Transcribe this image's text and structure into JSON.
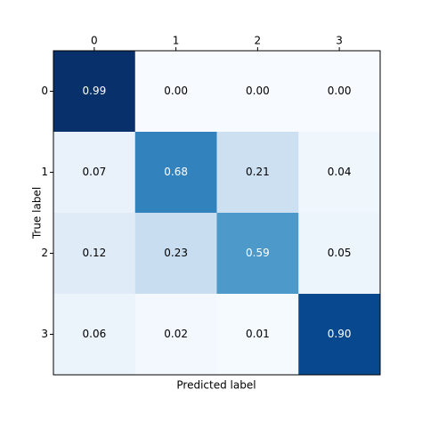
{
  "chart_data": {
    "type": "heatmap",
    "xlabel": "Predicted label",
    "ylabel": "True label",
    "x_categories": [
      "0",
      "1",
      "2",
      "3"
    ],
    "y_categories": [
      "0",
      "1",
      "2",
      "3"
    ],
    "values": [
      [
        0.99,
        0.0,
        0.0,
        0.0
      ],
      [
        0.07,
        0.68,
        0.21,
        0.04
      ],
      [
        0.12,
        0.23,
        0.59,
        0.05
      ],
      [
        0.06,
        0.02,
        0.01,
        0.9
      ]
    ],
    "value_labels": [
      [
        "0.99",
        "0.00",
        "0.00",
        "0.00"
      ],
      [
        "0.07",
        "0.68",
        "0.21",
        "0.04"
      ],
      [
        "0.12",
        "0.23",
        "0.59",
        "0.05"
      ],
      [
        "0.06",
        "0.02",
        "0.01",
        "0.90"
      ]
    ],
    "colormap": "Blues",
    "x_axis_position": "top"
  }
}
